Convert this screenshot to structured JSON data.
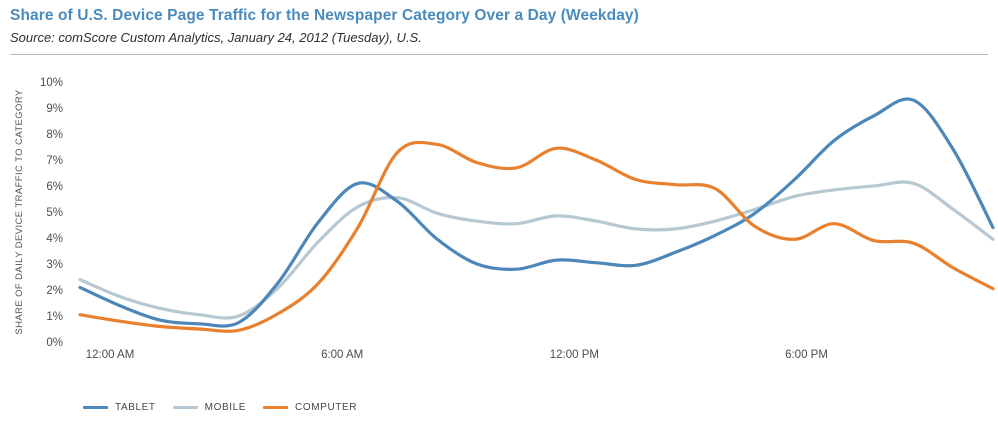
{
  "header": {
    "title": "Share of U.S. Device Page Traffic for the Newspaper Category Over a Day (Weekday)",
    "source": "Source: comScore Custom Analytics, January 24, 2012 (Tuesday), U.S."
  },
  "colors": {
    "title_text": "#4a8bbe",
    "source_text": "#2e2e2e",
    "axis_text": "#4d4d4d",
    "y_axis_title_text": "#555555",
    "legend_text": "#454545",
    "divider": "#b9b9b9",
    "tablet_line": "#4d86b8",
    "mobile_line": "#b6c8d1",
    "computer_line": "#e8802e"
  },
  "chart_data": {
    "type": "line",
    "title": "Share of U.S. Device Page Traffic for the Newspaper Category Over a Day (Weekday)",
    "subtitle": "Source: comScore Custom Analytics, January 24, 2012 (Tuesday), U.S.",
    "xlabel": "",
    "ylabel": "SHARE OF DAILY DEVICE TRAFFIC TO CATEGORY",
    "ylim": [
      0,
      10
    ],
    "xlim_hours": [
      0,
      23
    ],
    "grid": false,
    "legend_position": "bottom-left",
    "y_tick_labels": [
      "0%",
      "1%",
      "2%",
      "3%",
      "4%",
      "5%",
      "6%",
      "7%",
      "8%",
      "9%",
      "10%"
    ],
    "x_tick_labels": [
      {
        "hour": 0,
        "label": "12:00 AM"
      },
      {
        "hour": 6,
        "label": "6:00 AM"
      },
      {
        "hour": 12,
        "label": "12:00 PM"
      },
      {
        "hour": 18,
        "label": "6:00 PM"
      }
    ],
    "x_hours": [
      0,
      1,
      2,
      3,
      4,
      5,
      6,
      7,
      8,
      9,
      10,
      11,
      12,
      13,
      14,
      15,
      16,
      17,
      18,
      19,
      20,
      21,
      22,
      23
    ],
    "series": [
      {
        "name": "TABLET",
        "color": "#4d86b8",
        "values": [
          2.1,
          1.4,
          0.85,
          0.7,
          0.75,
          2.3,
          4.6,
          6.1,
          5.4,
          3.95,
          3.0,
          2.8,
          3.15,
          3.05,
          2.95,
          3.45,
          4.1,
          4.95,
          6.25,
          7.75,
          8.7,
          9.3,
          7.4,
          4.4
        ]
      },
      {
        "name": "MOBILE",
        "color": "#b6c8d1",
        "values": [
          2.4,
          1.75,
          1.3,
          1.05,
          1.0,
          2.1,
          3.85,
          5.2,
          5.55,
          4.95,
          4.65,
          4.55,
          4.85,
          4.65,
          4.35,
          4.35,
          4.65,
          5.1,
          5.6,
          5.85,
          6.0,
          6.1,
          5.1,
          3.95
        ]
      },
      {
        "name": "COMPUTER",
        "color": "#e8802e",
        "values": [
          1.05,
          0.8,
          0.6,
          0.5,
          0.45,
          1.1,
          2.25,
          4.4,
          7.3,
          7.6,
          6.9,
          6.7,
          7.45,
          7.0,
          6.25,
          6.05,
          5.9,
          4.45,
          3.95,
          4.55,
          3.9,
          3.8,
          2.85,
          2.05
        ]
      }
    ]
  }
}
